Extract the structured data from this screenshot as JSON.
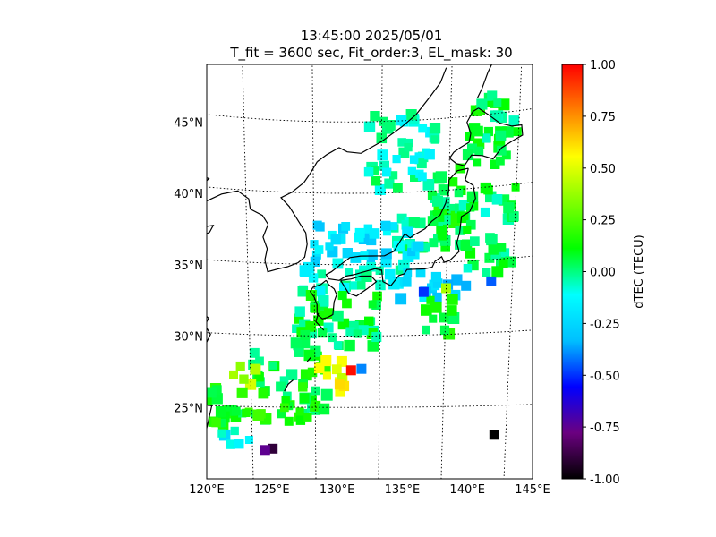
{
  "chart_data": {
    "type": "heatmap",
    "title": "13:45:00 2025/05/01",
    "subtitle": "T_fit = 3600 sec, Fit_order:3, EL_mask: 30",
    "xlabel": "",
    "ylabel": "",
    "xlim": [
      120,
      145
    ],
    "ylim": [
      20,
      49
    ],
    "grid": true,
    "lon_ticks": [
      {
        "value": 120,
        "label": "120°E"
      },
      {
        "value": 125,
        "label": "125°E"
      },
      {
        "value": 130,
        "label": "130°E"
      },
      {
        "value": 135,
        "label": "135°E"
      },
      {
        "value": 140,
        "label": "140°E"
      },
      {
        "value": 145,
        "label": "145°E"
      }
    ],
    "lat_ticks": [
      {
        "value": 25,
        "label": "25°N"
      },
      {
        "value": 30,
        "label": "30°N"
      },
      {
        "value": 35,
        "label": "35°N"
      },
      {
        "value": 40,
        "label": "40°N"
      },
      {
        "value": 45,
        "label": "45°N"
      }
    ],
    "colorbar": {
      "label": "dTEC (TECU)",
      "vmin": -1.0,
      "vmax": 1.0,
      "ticks": [
        "1.00",
        "0.75",
        "0.50",
        "0.25",
        "0.00",
        "-0.25",
        "-0.50",
        "-0.75",
        "-1.00"
      ],
      "colormap": [
        "#000000",
        "#6b0080",
        "#0000ff",
        "#00bfff",
        "#00ffff",
        "#00ff00",
        "#80ff00",
        "#ffff00",
        "#ff8000",
        "#ff0000"
      ]
    },
    "regions": [
      {
        "lon": [
          141,
          145
        ],
        "lat": [
          41,
          46.5
        ],
        "value": 0.05
      },
      {
        "lon": [
          139,
          141.5
        ],
        "lat": [
          36,
          41.5
        ],
        "value": 0.08
      },
      {
        "lon": [
          134,
          139
        ],
        "lat": [
          40,
          45.5
        ],
        "value": -0.05
      },
      {
        "lon": [
          136,
          140
        ],
        "lat": [
          36,
          40
        ],
        "value": 0.0
      },
      {
        "lon": [
          140.5,
          145
        ],
        "lat": [
          34,
          40
        ],
        "value": 0.02
      },
      {
        "lon": [
          130,
          138
        ],
        "lat": [
          35,
          38
        ],
        "value": -0.2
      },
      {
        "lon": [
          129,
          137
        ],
        "lat": [
          33,
          35
        ],
        "value": -0.1
      },
      {
        "lon": [
          136,
          141
        ],
        "lat": [
          32.5,
          34.5
        ],
        "value": -0.25
      },
      {
        "lon": [
          128,
          135
        ],
        "lat": [
          29,
          33
        ],
        "value": 0.05
      },
      {
        "lon": [
          125,
          131
        ],
        "lat": [
          24,
          29
        ],
        "value": 0.08
      },
      {
        "lon": [
          130,
          132.5
        ],
        "lat": [
          26,
          28.5
        ],
        "value": 0.5
      },
      {
        "lon": [
          123.5,
          125.5
        ],
        "lat": [
          26.5,
          28
        ],
        "value": 0.45
      },
      {
        "lon": [
          120,
          126
        ],
        "lat": [
          23.5,
          26.5
        ],
        "value": 0.12
      },
      {
        "lon": [
          122.5,
          125
        ],
        "lat": [
          22,
          23.5
        ],
        "value": -0.15
      },
      {
        "lon": [
          138,
          141
        ],
        "lat": [
          30,
          32.5
        ],
        "value": 0.1
      }
    ],
    "points": [
      {
        "lon": 132.8,
        "lat": 27.6,
        "value": 0.98
      },
      {
        "lon": 131.9,
        "lat": 26.6,
        "value": 0.62
      },
      {
        "lon": 133.6,
        "lat": 27.7,
        "value": -0.4
      },
      {
        "lon": 140.0,
        "lat": 33.2,
        "value": 0.4
      },
      {
        "lon": 138.3,
        "lat": 33.0,
        "value": -0.5
      },
      {
        "lon": 141.5,
        "lat": 33.3,
        "value": -0.35
      },
      {
        "lon": 143.4,
        "lat": 33.5,
        "value": -0.45
      },
      {
        "lon": 144.1,
        "lat": 23.0,
        "value": -1.0
      },
      {
        "lon": 126.6,
        "lat": 22.1,
        "value": -0.9
      },
      {
        "lon": 126.0,
        "lat": 22.0,
        "value": -0.75
      }
    ]
  }
}
